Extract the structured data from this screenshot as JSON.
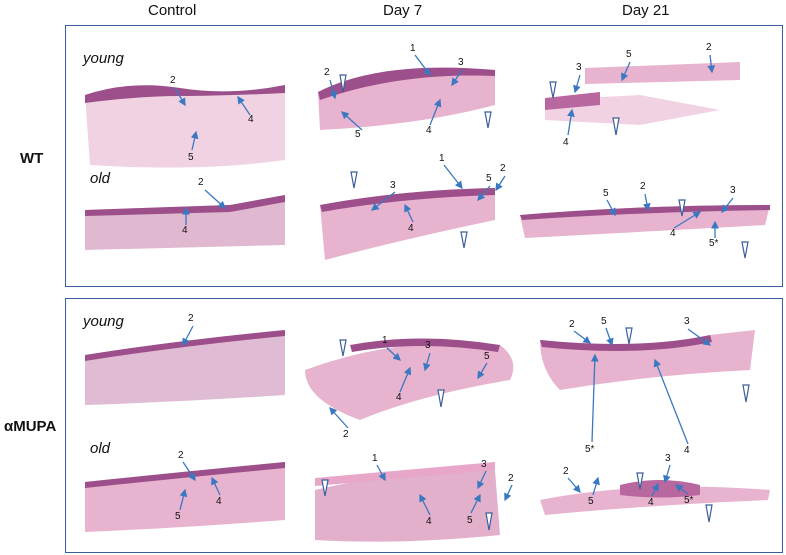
{
  "columns": [
    "Control",
    "Day 7",
    "Day 21"
  ],
  "rows": [
    "WT",
    "αMUPA"
  ],
  "ages": [
    "young",
    "old"
  ],
  "colors": {
    "frame": "#3b5f9a",
    "arrow": "#3a78c2",
    "tissue": "#e7b3cf",
    "epidermis": "#9c4f8a",
    "dermis": "#f1d2e3"
  },
  "panels": {
    "wt_young_control": [
      "2",
      "4",
      "5"
    ],
    "wt_young_day7": [
      "1",
      "3",
      "2",
      "4",
      "5"
    ],
    "wt_young_day21": [
      "2",
      "3",
      "5",
      "4"
    ],
    "wt_old_control": [
      "2",
      "4"
    ],
    "wt_old_day7": [
      "1",
      "3",
      "5",
      "2",
      "4"
    ],
    "wt_old_day21": [
      "5",
      "2",
      "3",
      "4",
      "5*"
    ],
    "mupa_young_control": [
      "2"
    ],
    "mupa_young_day7": [
      "1",
      "3",
      "5",
      "4",
      "2"
    ],
    "mupa_young_day21": [
      "2",
      "5",
      "3",
      "5*",
      "4"
    ],
    "mupa_old_control": [
      "2",
      "4",
      "5"
    ],
    "mupa_old_day7": [
      "1",
      "3",
      "2",
      "4",
      "5"
    ],
    "mupa_old_day21": [
      "2",
      "3",
      "5",
      "4",
      "5*"
    ]
  }
}
